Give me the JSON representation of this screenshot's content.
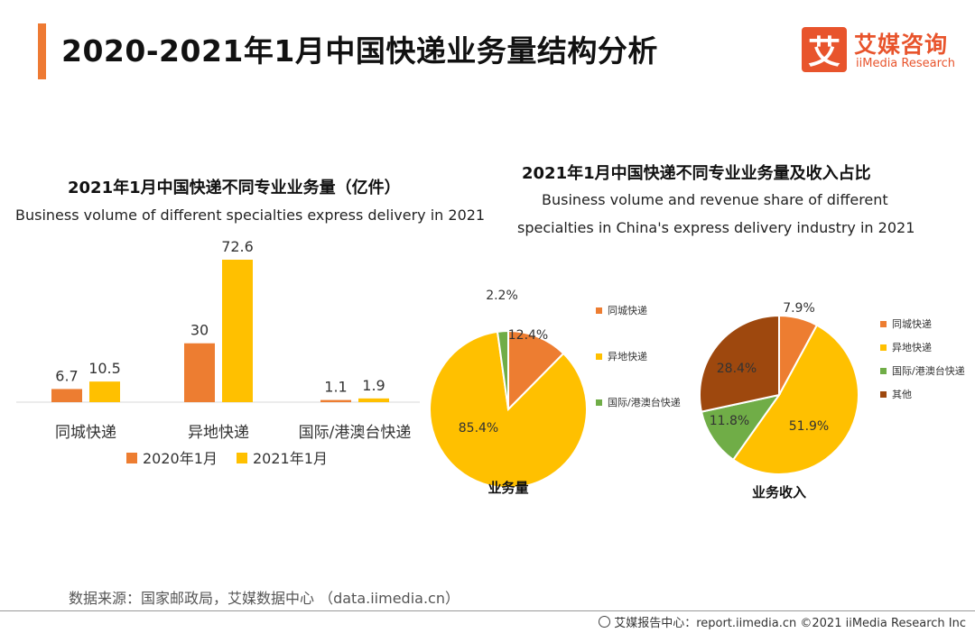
{
  "header": {
    "title": "2020-2021年1月中国快递业务量结构分析",
    "logo_cn": "艾媒咨询",
    "logo_en": "iiMedia Research",
    "logo_mark": "艾"
  },
  "colors": {
    "accent": "#ee7a33",
    "orange": "#ed7d31",
    "yellow": "#ffc000",
    "green": "#70ad47",
    "brown": "#9e480e",
    "brand": "#e8542c"
  },
  "chart_data": [
    {
      "type": "bar",
      "title": "2021年1月中国快递不同专业业务量（亿件）",
      "subtitle": "Business volume of different specialties express delivery in 2021",
      "categories": [
        "同城快递",
        "异地快递",
        "国际/港澳台快递"
      ],
      "series": [
        {
          "name": "2020年1月",
          "values": [
            6.7,
            30,
            1.1
          ],
          "labels": [
            "6.7",
            "30",
            "1.1"
          ],
          "color": "#ed7d31"
        },
        {
          "name": "2021年1月",
          "values": [
            10.5,
            72.6,
            1.9
          ],
          "labels": [
            "10.5",
            "72.6",
            "1.9"
          ],
          "color": "#ffc000"
        }
      ],
      "ylim": [
        0,
        72.6
      ],
      "legend": "bottom",
      "grid": false
    },
    {
      "type": "pie",
      "title": "2021年1月中国快递不同专业业务量及收入占比",
      "subtitle_lines": [
        "Business volume and revenue share of different",
        "specialties in China's express delivery industry in 2021"
      ],
      "label": "业务量",
      "slices": [
        {
          "name": "同城快递",
          "value": 12.4,
          "label": "12.4%",
          "color": "#ed7d31"
        },
        {
          "name": "异地快递",
          "value": 85.4,
          "label": "85.4%",
          "color": "#ffc000"
        },
        {
          "name": "国际/港澳台快递",
          "value": 2.2,
          "label": "2.2%",
          "color": "#70ad47"
        }
      ],
      "legend": "right"
    },
    {
      "type": "pie",
      "label": "业务收入",
      "slices": [
        {
          "name": "同城快递",
          "value": 7.9,
          "label": "7.9%",
          "color": "#ed7d31"
        },
        {
          "name": "异地快递",
          "value": 51.9,
          "label": "51.9%",
          "color": "#ffc000"
        },
        {
          "name": "国际/港澳台快递",
          "value": 11.8,
          "label": "11.8%",
          "color": "#70ad47"
        },
        {
          "name": "其他",
          "value": 28.4,
          "label": "28.4%",
          "color": "#9e480e"
        }
      ],
      "legend": "right"
    }
  ],
  "source": "数据来源：国家邮政局，艾媒数据中心 （data.iimedia.cn）",
  "footer": "艾媒报告中心：report.iimedia.cn  ©2021  iiMedia Research  Inc"
}
